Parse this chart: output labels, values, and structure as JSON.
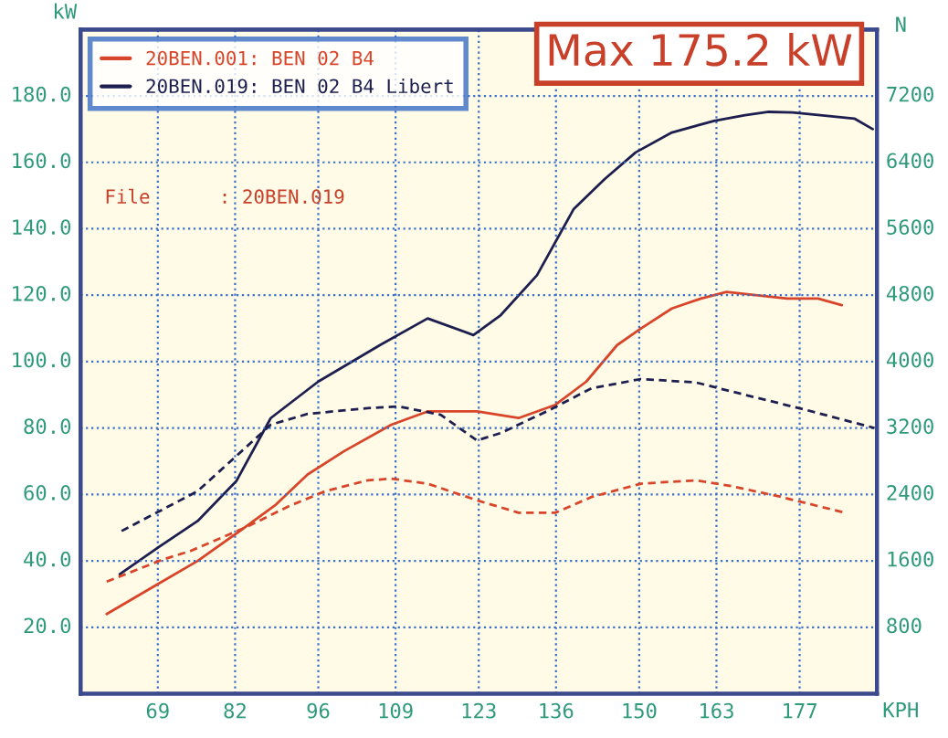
{
  "chart_data": {
    "type": "line",
    "title": "Max 175.2 kW",
    "ylabel": "kW",
    "y2label": "N",
    "xlabel": "KPH",
    "annotations": [
      "File      : 20BEN.019"
    ],
    "series": [
      {
        "name": "20BEN.001: BEN 02 B4",
        "color": "#d8452a",
        "line_style": "solid",
        "x": [
          60.4,
          69,
          75.7,
          82.8,
          88.9,
          94.2,
          100.3,
          108.3,
          114.4,
          118.7,
          122.7,
          129.7,
          135.9,
          141.1,
          146.3,
          150.3,
          155.5,
          160.4,
          164.7,
          169.6,
          174.9,
          180.1,
          184.1
        ],
        "values": [
          24,
          33,
          40,
          49,
          57,
          66,
          73,
          81,
          85,
          85,
          85,
          83,
          87,
          94,
          105,
          110,
          116,
          119,
          121,
          120,
          119,
          119,
          117
        ]
      },
      {
        "name": "20BEN.019: BEN 02 B4 Libert",
        "color": "#1c1f4f",
        "line_style": "solid",
        "x": [
          62.6,
          69,
          75.7,
          82.2,
          88.0,
          96.0,
          106.4,
          114.4,
          122.1,
          126.7,
          132.8,
          139.0,
          144.2,
          149.4,
          155.5,
          162.6,
          167.8,
          171.8,
          175.8,
          180.1,
          186.2,
          189.3
        ],
        "values": [
          36,
          44,
          52,
          64,
          83,
          94,
          105,
          113,
          108,
          114,
          126,
          146,
          155,
          163,
          169,
          172.5,
          174.2,
          175.2,
          175.0,
          174.3,
          173.2,
          170
        ]
      },
      {
        "color": "#d8452a",
        "line_style": "dashed",
        "axis": "y2",
        "x": [
          60.4,
          69.6,
          74.5,
          83.7,
          91.1,
          97.2,
          104.3,
          108.3,
          114.4,
          122.7,
          129.7,
          135.9,
          142.0,
          150.3,
          159.5,
          165.6,
          173.9,
          180.1,
          184.7
        ],
        "values": [
          1350,
          1610,
          1720,
          2000,
          2260,
          2440,
          2570,
          2590,
          2530,
          2330,
          2180,
          2180,
          2370,
          2530,
          2570,
          2500,
          2370,
          2260,
          2180
        ]
      },
      {
        "color": "#1c1f4f",
        "line_style": "dashed",
        "axis": "y2",
        "x": [
          62.9,
          75.7,
          88.0,
          94.2,
          104.3,
          109.5,
          116.6,
          122.7,
          126.7,
          135.0,
          142.0,
          150.3,
          159.5,
          167.8,
          178.0,
          189.6
        ],
        "values": [
          1960,
          2440,
          3240,
          3370,
          3440,
          3460,
          3360,
          3050,
          3140,
          3420,
          3680,
          3790,
          3750,
          3600,
          3420,
          3200
        ]
      }
    ],
    "xlim": [
      56,
      190
    ],
    "xticks": [
      69,
      82,
      96,
      109,
      123,
      136,
      150,
      163,
      177
    ],
    "ylim": [
      0,
      200
    ],
    "yticks": [
      {
        "value": 20,
        "label": "20.0"
      },
      {
        "value": 40,
        "label": "40.0"
      },
      {
        "value": 60,
        "label": "60.0"
      },
      {
        "value": 80,
        "label": "80.0"
      },
      {
        "value": 100,
        "label": "100.0"
      },
      {
        "value": 120,
        "label": "120.0"
      },
      {
        "value": 140,
        "label": "140.0"
      },
      {
        "value": 160,
        "label": "160.0"
      },
      {
        "value": 180,
        "label": "180.0"
      }
    ],
    "y2lim": [
      0,
      8000
    ],
    "y2ticks": [
      800,
      1600,
      2400,
      3200,
      4000,
      4800,
      5600,
      6400,
      7200
    ],
    "grid": true,
    "legend": "top left"
  }
}
